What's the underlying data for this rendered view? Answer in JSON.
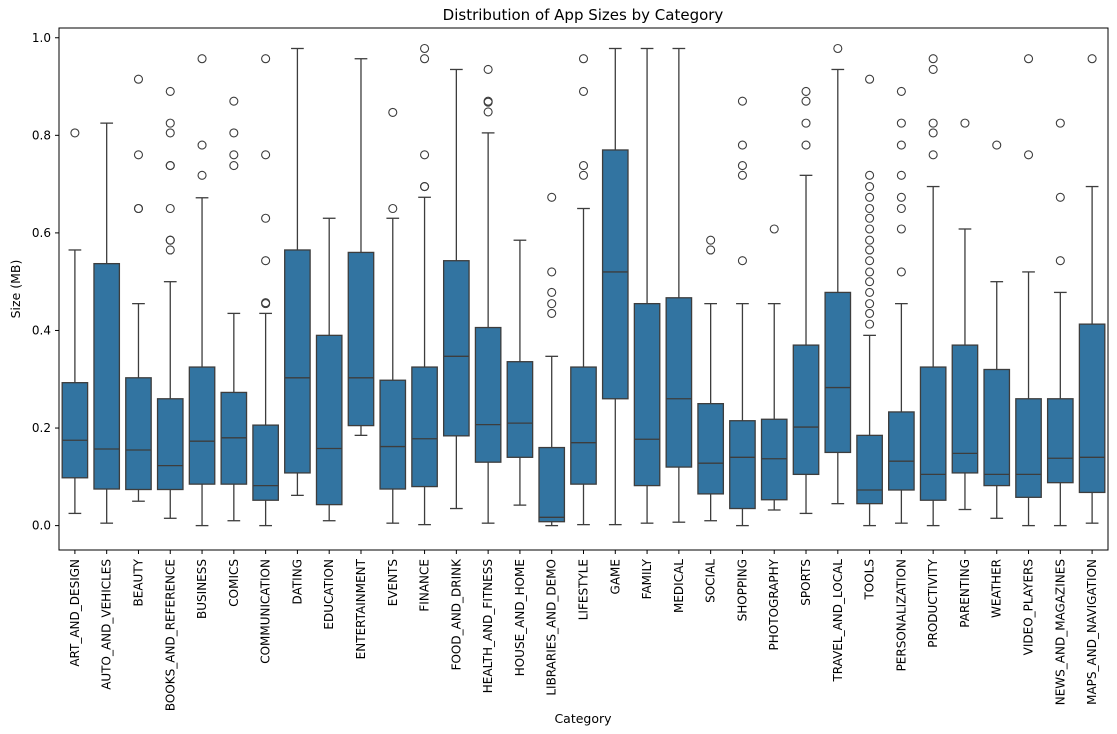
{
  "chart_data": {
    "type": "box",
    "title": "Distribution of App Sizes by Category",
    "xlabel": "Category",
    "ylabel": "Size (MB)",
    "ylim": [
      -0.05,
      1.02
    ],
    "yticks": [
      "0.0",
      "0.2",
      "0.4",
      "0.6",
      "0.8",
      "1.0"
    ],
    "box_color": "#3274a1",
    "line_color": "#3d3d3d",
    "grid": false,
    "categories": [
      {
        "name": "ART_AND_DESIGN",
        "whislo": 0.025,
        "q1": 0.098,
        "med": 0.175,
        "q3": 0.293,
        "whishi": 0.565,
        "fliers": [
          0.805
        ]
      },
      {
        "name": "AUTO_AND_VEHICLES",
        "whislo": 0.005,
        "q1": 0.075,
        "med": 0.157,
        "q3": 0.537,
        "whishi": 0.825,
        "fliers": []
      },
      {
        "name": "BEAUTY",
        "whislo": 0.05,
        "q1": 0.074,
        "med": 0.155,
        "q3": 0.303,
        "whishi": 0.455,
        "fliers": [
          0.65,
          0.65,
          0.76,
          0.915
        ]
      },
      {
        "name": "BOOKS_AND_REFERENCE",
        "whislo": 0.015,
        "q1": 0.074,
        "med": 0.123,
        "q3": 0.26,
        "whishi": 0.5,
        "fliers": [
          0.565,
          0.585,
          0.585,
          0.65,
          0.738,
          0.738,
          0.805,
          0.825,
          0.89
        ]
      },
      {
        "name": "BUSINESS",
        "whislo": 0.0,
        "q1": 0.085,
        "med": 0.173,
        "q3": 0.325,
        "whishi": 0.672,
        "fliers": [
          0.718,
          0.78,
          0.957
        ]
      },
      {
        "name": "COMICS",
        "whislo": 0.01,
        "q1": 0.085,
        "med": 0.18,
        "q3": 0.273,
        "whishi": 0.435,
        "fliers": [
          0.738,
          0.76,
          0.805,
          0.87
        ]
      },
      {
        "name": "COMMUNICATION",
        "whislo": 0.0,
        "q1": 0.052,
        "med": 0.082,
        "q3": 0.206,
        "whishi": 0.435,
        "fliers": [
          0.455,
          0.457,
          0.543,
          0.63,
          0.76,
          0.957
        ]
      },
      {
        "name": "DATING",
        "whislo": 0.062,
        "q1": 0.108,
        "med": 0.303,
        "q3": 0.565,
        "whishi": 0.978,
        "fliers": []
      },
      {
        "name": "EDUCATION",
        "whislo": 0.01,
        "q1": 0.043,
        "med": 0.158,
        "q3": 0.39,
        "whishi": 0.63,
        "fliers": []
      },
      {
        "name": "ENTERTAINMENT",
        "whislo": 0.185,
        "q1": 0.205,
        "med": 0.303,
        "q3": 0.56,
        "whishi": 0.957,
        "fliers": []
      },
      {
        "name": "EVENTS",
        "whislo": 0.005,
        "q1": 0.075,
        "med": 0.162,
        "q3": 0.298,
        "whishi": 0.63,
        "fliers": [
          0.65,
          0.847
        ]
      },
      {
        "name": "FINANCE",
        "whislo": 0.002,
        "q1": 0.08,
        "med": 0.178,
        "q3": 0.325,
        "whishi": 0.673,
        "fliers": [
          0.695,
          0.695,
          0.76,
          0.957,
          0.978
        ]
      },
      {
        "name": "FOOD_AND_DRINK",
        "whislo": 0.035,
        "q1": 0.184,
        "med": 0.347,
        "q3": 0.543,
        "whishi": 0.935,
        "fliers": []
      },
      {
        "name": "HEALTH_AND_FITNESS",
        "whislo": 0.005,
        "q1": 0.13,
        "med": 0.207,
        "q3": 0.406,
        "whishi": 0.805,
        "fliers": [
          0.848,
          0.868,
          0.87,
          0.935
        ]
      },
      {
        "name": "HOUSE_AND_HOME",
        "whislo": 0.042,
        "q1": 0.14,
        "med": 0.21,
        "q3": 0.336,
        "whishi": 0.585,
        "fliers": []
      },
      {
        "name": "LIBRARIES_AND_DEMO",
        "whislo": 0.0,
        "q1": 0.008,
        "med": 0.017,
        "q3": 0.16,
        "whishi": 0.347,
        "fliers": [
          0.435,
          0.455,
          0.478,
          0.52,
          0.673
        ]
      },
      {
        "name": "LIFESTYLE",
        "whislo": 0.002,
        "q1": 0.085,
        "med": 0.17,
        "q3": 0.325,
        "whishi": 0.65,
        "fliers": [
          0.718,
          0.738,
          0.89,
          0.957
        ]
      },
      {
        "name": "GAME",
        "whislo": 0.002,
        "q1": 0.26,
        "med": 0.52,
        "q3": 0.77,
        "whishi": 0.978,
        "fliers": []
      },
      {
        "name": "FAMILY",
        "whislo": 0.005,
        "q1": 0.082,
        "med": 0.177,
        "q3": 0.455,
        "whishi": 0.978,
        "fliers": []
      },
      {
        "name": "MEDICAL",
        "whislo": 0.007,
        "q1": 0.12,
        "med": 0.26,
        "q3": 0.467,
        "whishi": 0.978,
        "fliers": []
      },
      {
        "name": "SOCIAL",
        "whislo": 0.01,
        "q1": 0.065,
        "med": 0.128,
        "q3": 0.25,
        "whishi": 0.455,
        "fliers": [
          0.565,
          0.585
        ]
      },
      {
        "name": "SHOPPING",
        "whislo": 0.0,
        "q1": 0.035,
        "med": 0.14,
        "q3": 0.215,
        "whishi": 0.455,
        "fliers": [
          0.543,
          0.718,
          0.738,
          0.78,
          0.87
        ]
      },
      {
        "name": "PHOTOGRAPHY",
        "whislo": 0.032,
        "q1": 0.053,
        "med": 0.137,
        "q3": 0.218,
        "whishi": 0.455,
        "fliers": [
          0.608
        ]
      },
      {
        "name": "SPORTS",
        "whislo": 0.025,
        "q1": 0.105,
        "med": 0.202,
        "q3": 0.37,
        "whishi": 0.718,
        "fliers": [
          0.78,
          0.825,
          0.87,
          0.89
        ]
      },
      {
        "name": "TRAVEL_AND_LOCAL",
        "whislo": 0.045,
        "q1": 0.15,
        "med": 0.283,
        "q3": 0.478,
        "whishi": 0.935,
        "fliers": [
          0.978
        ]
      },
      {
        "name": "TOOLS",
        "whislo": 0.0,
        "q1": 0.045,
        "med": 0.073,
        "q3": 0.185,
        "whishi": 0.39,
        "fliers": [
          0.413,
          0.435,
          0.455,
          0.478,
          0.5,
          0.52,
          0.543,
          0.565,
          0.585,
          0.608,
          0.63,
          0.65,
          0.673,
          0.695,
          0.718,
          0.915
        ]
      },
      {
        "name": "PERSONALIZATION",
        "whislo": 0.005,
        "q1": 0.073,
        "med": 0.132,
        "q3": 0.233,
        "whishi": 0.455,
        "fliers": [
          0.52,
          0.608,
          0.65,
          0.673,
          0.718,
          0.78,
          0.825,
          0.89
        ]
      },
      {
        "name": "PRODUCTIVITY",
        "whislo": 0.0,
        "q1": 0.052,
        "med": 0.105,
        "q3": 0.325,
        "whishi": 0.695,
        "fliers": [
          0.76,
          0.805,
          0.825,
          0.935,
          0.957
        ]
      },
      {
        "name": "PARENTING",
        "whislo": 0.033,
        "q1": 0.108,
        "med": 0.148,
        "q3": 0.37,
        "whishi": 0.608,
        "fliers": [
          0.825
        ]
      },
      {
        "name": "WEATHER",
        "whislo": 0.015,
        "q1": 0.082,
        "med": 0.105,
        "q3": 0.32,
        "whishi": 0.5,
        "fliers": [
          0.78
        ]
      },
      {
        "name": "VIDEO_PLAYERS",
        "whislo": 0.0,
        "q1": 0.058,
        "med": 0.105,
        "q3": 0.26,
        "whishi": 0.52,
        "fliers": [
          0.76,
          0.957
        ]
      },
      {
        "name": "NEWS_AND_MAGAZINES",
        "whislo": 0.0,
        "q1": 0.088,
        "med": 0.138,
        "q3": 0.26,
        "whishi": 0.478,
        "fliers": [
          0.543,
          0.673,
          0.825
        ]
      },
      {
        "name": "MAPS_AND_NAVIGATION",
        "whislo": 0.005,
        "q1": 0.068,
        "med": 0.14,
        "q3": 0.413,
        "whishi": 0.695,
        "fliers": [
          0.957
        ]
      }
    ]
  }
}
